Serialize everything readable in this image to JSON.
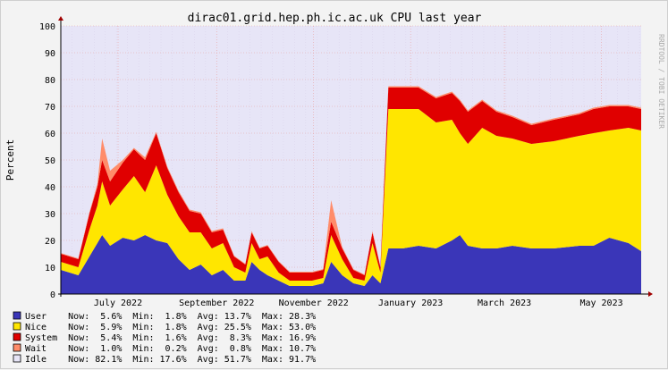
{
  "chart_data": {
    "type": "area",
    "title": "dirac01.grid.hep.ph.ic.ac.uk CPU last year",
    "ylabel": "Percent",
    "xlabel": "",
    "watermark": "RRDTOOL / TOBI OETIKER",
    "ylim": [
      0,
      100
    ],
    "y_ticks": [
      "0",
      "10",
      "20",
      "30",
      "40",
      "50",
      "60",
      "70",
      "80",
      "90",
      "100"
    ],
    "x_ticks": [
      "July 2022",
      "September 2022",
      "November 2022",
      "January 2023",
      "March 2023",
      "May 2023"
    ],
    "x_tick_dates": [
      "2022-07-15",
      "2022-09-15",
      "2022-11-15",
      "2023-01-15",
      "2023-03-15",
      "2023-05-15"
    ],
    "date_range": [
      "2022-06-09",
      "2023-06-09"
    ],
    "grid": true,
    "legend_position": "bottom",
    "stacked": true,
    "series": [
      {
        "name": "User",
        "color": "#3a36b8",
        "stats": {
          "now": "5.6%",
          "min": "1.8%",
          "avg": "13.7%",
          "max": "28.3%"
        },
        "points": [
          [
            "2022-06-09",
            9
          ],
          [
            "2022-06-20",
            7
          ],
          [
            "2022-06-27",
            14
          ],
          [
            "2022-07-02",
            19
          ],
          [
            "2022-07-05",
            22
          ],
          [
            "2022-07-10",
            18
          ],
          [
            "2022-07-18",
            21
          ],
          [
            "2022-07-25",
            20
          ],
          [
            "2022-08-01",
            22
          ],
          [
            "2022-08-08",
            20
          ],
          [
            "2022-08-15",
            19
          ],
          [
            "2022-08-22",
            13
          ],
          [
            "2022-08-29",
            9
          ],
          [
            "2022-09-05",
            11
          ],
          [
            "2022-09-12",
            7
          ],
          [
            "2022-09-19",
            9
          ],
          [
            "2022-09-26",
            5
          ],
          [
            "2022-10-03",
            5
          ],
          [
            "2022-10-07",
            12
          ],
          [
            "2022-10-12",
            9
          ],
          [
            "2022-10-17",
            7
          ],
          [
            "2022-10-24",
            5
          ],
          [
            "2022-10-31",
            3
          ],
          [
            "2022-11-07",
            3
          ],
          [
            "2022-11-14",
            3
          ],
          [
            "2022-11-21",
            4
          ],
          [
            "2022-11-26",
            12
          ],
          [
            "2022-12-03",
            7
          ],
          [
            "2022-12-10",
            4
          ],
          [
            "2022-12-17",
            3
          ],
          [
            "2022-12-22",
            7
          ],
          [
            "2022-12-27",
            4
          ],
          [
            "2023-01-01",
            17
          ],
          [
            "2023-01-10",
            17
          ],
          [
            "2023-01-20",
            18
          ],
          [
            "2023-01-31",
            17
          ],
          [
            "2023-02-10",
            20
          ],
          [
            "2023-02-15",
            22
          ],
          [
            "2023-02-20",
            18
          ],
          [
            "2023-03-01",
            17
          ],
          [
            "2023-03-10",
            17
          ],
          [
            "2023-03-20",
            18
          ],
          [
            "2023-04-01",
            17
          ],
          [
            "2023-04-15",
            17
          ],
          [
            "2023-05-01",
            18
          ],
          [
            "2023-05-10",
            18
          ],
          [
            "2023-05-20",
            21
          ],
          [
            "2023-06-01",
            19
          ],
          [
            "2023-06-09",
            16
          ]
        ]
      },
      {
        "name": "Nice",
        "color": "#ffe600",
        "stats": {
          "now": "5.9%",
          "min": "1.8%",
          "avg": "25.5%",
          "max": "53.0%"
        },
        "points": [
          [
            "2022-06-09",
            3
          ],
          [
            "2022-06-20",
            3
          ],
          [
            "2022-06-27",
            10
          ],
          [
            "2022-07-02",
            14
          ],
          [
            "2022-07-05",
            20
          ],
          [
            "2022-07-10",
            15
          ],
          [
            "2022-07-18",
            18
          ],
          [
            "2022-07-25",
            24
          ],
          [
            "2022-08-01",
            16
          ],
          [
            "2022-08-08",
            28
          ],
          [
            "2022-08-15",
            18
          ],
          [
            "2022-08-22",
            16
          ],
          [
            "2022-08-29",
            14
          ],
          [
            "2022-09-05",
            12
          ],
          [
            "2022-09-12",
            10
          ],
          [
            "2022-09-19",
            10
          ],
          [
            "2022-09-26",
            5
          ],
          [
            "2022-10-03",
            3
          ],
          [
            "2022-10-07",
            7
          ],
          [
            "2022-10-12",
            4
          ],
          [
            "2022-10-17",
            7
          ],
          [
            "2022-10-24",
            3
          ],
          [
            "2022-10-31",
            2
          ],
          [
            "2022-11-07",
            2
          ],
          [
            "2022-11-14",
            2
          ],
          [
            "2022-11-21",
            2
          ],
          [
            "2022-11-26",
            10
          ],
          [
            "2022-12-03",
            6
          ],
          [
            "2022-12-10",
            2
          ],
          [
            "2022-12-17",
            2
          ],
          [
            "2022-12-22",
            12
          ],
          [
            "2022-12-27",
            4
          ],
          [
            "2023-01-01",
            52
          ],
          [
            "2023-01-10",
            52
          ],
          [
            "2023-01-20",
            51
          ],
          [
            "2023-01-31",
            47
          ],
          [
            "2023-02-10",
            45
          ],
          [
            "2023-02-15",
            38
          ],
          [
            "2023-02-20",
            38
          ],
          [
            "2023-03-01",
            45
          ],
          [
            "2023-03-10",
            42
          ],
          [
            "2023-03-20",
            40
          ],
          [
            "2023-04-01",
            39
          ],
          [
            "2023-04-15",
            40
          ],
          [
            "2023-05-01",
            41
          ],
          [
            "2023-05-10",
            42
          ],
          [
            "2023-05-20",
            40
          ],
          [
            "2023-06-01",
            43
          ],
          [
            "2023-06-09",
            45
          ]
        ]
      },
      {
        "name": "System",
        "color": "#e00000",
        "stats": {
          "now": "5.4%",
          "min": "1.6%",
          "avg": "8.3%",
          "max": "16.9%"
        },
        "points": [
          [
            "2022-06-09",
            3
          ],
          [
            "2022-06-20",
            3
          ],
          [
            "2022-06-27",
            6
          ],
          [
            "2022-07-02",
            7
          ],
          [
            "2022-07-05",
            8
          ],
          [
            "2022-07-10",
            9
          ],
          [
            "2022-07-18",
            10
          ],
          [
            "2022-07-25",
            10
          ],
          [
            "2022-08-01",
            12
          ],
          [
            "2022-08-08",
            12
          ],
          [
            "2022-08-15",
            10
          ],
          [
            "2022-08-22",
            9
          ],
          [
            "2022-08-29",
            8
          ],
          [
            "2022-09-05",
            7
          ],
          [
            "2022-09-12",
            6
          ],
          [
            "2022-09-19",
            5
          ],
          [
            "2022-09-26",
            4
          ],
          [
            "2022-10-03",
            3
          ],
          [
            "2022-10-07",
            4
          ],
          [
            "2022-10-12",
            4
          ],
          [
            "2022-10-17",
            4
          ],
          [
            "2022-10-24",
            4
          ],
          [
            "2022-10-31",
            3
          ],
          [
            "2022-11-07",
            3
          ],
          [
            "2022-11-14",
            3
          ],
          [
            "2022-11-21",
            3
          ],
          [
            "2022-11-26",
            5
          ],
          [
            "2022-12-03",
            4
          ],
          [
            "2022-12-10",
            3
          ],
          [
            "2022-12-17",
            2
          ],
          [
            "2022-12-22",
            4
          ],
          [
            "2022-12-27",
            2
          ],
          [
            "2023-01-01",
            8
          ],
          [
            "2023-01-10",
            8
          ],
          [
            "2023-01-20",
            8
          ],
          [
            "2023-01-31",
            9
          ],
          [
            "2023-02-10",
            10
          ],
          [
            "2023-02-15",
            12
          ],
          [
            "2023-02-20",
            12
          ],
          [
            "2023-03-01",
            10
          ],
          [
            "2023-03-10",
            9
          ],
          [
            "2023-03-20",
            8
          ],
          [
            "2023-04-01",
            7
          ],
          [
            "2023-04-15",
            8
          ],
          [
            "2023-05-01",
            8
          ],
          [
            "2023-05-10",
            9
          ],
          [
            "2023-05-20",
            9
          ],
          [
            "2023-06-01",
            8
          ],
          [
            "2023-06-09",
            8
          ]
        ]
      },
      {
        "name": "Wait",
        "color": "#ff8c6a",
        "stats": {
          "now": "1.0%",
          "min": "0.2%",
          "avg": "0.8%",
          "max": "10.7%"
        },
        "points": [
          [
            "2022-06-09",
            0.3
          ],
          [
            "2022-06-20",
            0.3
          ],
          [
            "2022-06-27",
            0.5
          ],
          [
            "2022-07-02",
            1
          ],
          [
            "2022-07-05",
            8
          ],
          [
            "2022-07-10",
            4
          ],
          [
            "2022-07-18",
            1
          ],
          [
            "2022-07-25",
            0.5
          ],
          [
            "2022-08-01",
            1
          ],
          [
            "2022-08-08",
            0.5
          ],
          [
            "2022-08-15",
            0.5
          ],
          [
            "2022-08-22",
            0.5
          ],
          [
            "2022-08-29",
            0.5
          ],
          [
            "2022-09-05",
            0.5
          ],
          [
            "2022-09-12",
            0.5
          ],
          [
            "2022-09-19",
            0.5
          ],
          [
            "2022-09-26",
            0.3
          ],
          [
            "2022-10-03",
            0.3
          ],
          [
            "2022-10-07",
            0.5
          ],
          [
            "2022-10-12",
            0.3
          ],
          [
            "2022-10-17",
            0.3
          ],
          [
            "2022-10-24",
            0.3
          ],
          [
            "2022-10-31",
            0.3
          ],
          [
            "2022-11-07",
            0.3
          ],
          [
            "2022-11-14",
            0.3
          ],
          [
            "2022-11-21",
            0.3
          ],
          [
            "2022-11-26",
            8
          ],
          [
            "2022-12-03",
            0.5
          ],
          [
            "2022-12-10",
            0.3
          ],
          [
            "2022-12-17",
            0.3
          ],
          [
            "2022-12-22",
            0.5
          ],
          [
            "2022-12-27",
            0.3
          ],
          [
            "2023-01-01",
            0.5
          ],
          [
            "2023-01-10",
            0.5
          ],
          [
            "2023-01-20",
            0.5
          ],
          [
            "2023-01-31",
            0.5
          ],
          [
            "2023-02-10",
            0.5
          ],
          [
            "2023-02-15",
            0.5
          ],
          [
            "2023-02-20",
            0.5
          ],
          [
            "2023-03-01",
            0.5
          ],
          [
            "2023-03-10",
            0.5
          ],
          [
            "2023-03-20",
            0.5
          ],
          [
            "2023-04-01",
            0.5
          ],
          [
            "2023-04-15",
            0.5
          ],
          [
            "2023-05-01",
            0.5
          ],
          [
            "2023-05-10",
            0.5
          ],
          [
            "2023-05-20",
            0.5
          ],
          [
            "2023-06-01",
            0.5
          ],
          [
            "2023-06-09",
            0.5
          ]
        ]
      },
      {
        "name": "Idle",
        "color": "#e7e5f7",
        "stats": {
          "now": "82.1%",
          "min": "17.6%",
          "avg": "51.7%",
          "max": "91.7%"
        }
      }
    ]
  }
}
